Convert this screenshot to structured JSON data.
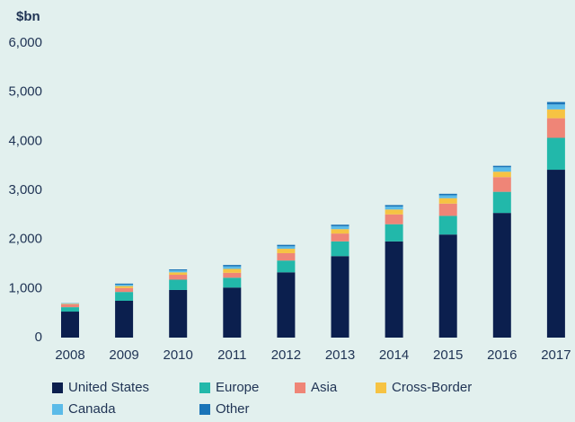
{
  "chart_data": {
    "type": "stacked_bar",
    "y_label": "$bn",
    "categories": [
      "2008",
      "2009",
      "2010",
      "2011",
      "2012",
      "2013",
      "2014",
      "2015",
      "2016",
      "2017"
    ],
    "series": [
      {
        "name": "United States",
        "color": "#0b1f4e",
        "values": [
          530,
          750,
          970,
          1020,
          1330,
          1660,
          1960,
          2100,
          2540,
          3420
        ]
      },
      {
        "name": "Europe",
        "color": "#22b8aa",
        "values": [
          90,
          180,
          210,
          200,
          240,
          300,
          350,
          380,
          430,
          650
        ]
      },
      {
        "name": "Asia",
        "color": "#ef8577",
        "values": [
          60,
          80,
          100,
          100,
          150,
          160,
          200,
          250,
          300,
          400
        ]
      },
      {
        "name": "Cross-Border",
        "color": "#f6c343",
        "values": [
          10,
          40,
          50,
          80,
          90,
          90,
          100,
          110,
          110,
          180
        ]
      },
      {
        "name": "Canada",
        "color": "#5bbbe8",
        "values": [
          5,
          30,
          40,
          50,
          50,
          60,
          60,
          60,
          90,
          100
        ]
      },
      {
        "name": "Other",
        "color": "#1a74b8",
        "values": [
          5,
          20,
          20,
          30,
          30,
          30,
          30,
          30,
          30,
          50
        ]
      }
    ],
    "ylim": [
      0,
      6000
    ],
    "yticks": [
      0,
      {
        "value": 1000,
        "label": "1,000"
      },
      {
        "value": 2000,
        "label": "2,000"
      },
      {
        "value": 3000,
        "label": "3,000"
      },
      {
        "value": 4000,
        "label": "4,000"
      },
      {
        "value": 5000,
        "label": "5,000"
      },
      {
        "value": 6000,
        "label": "6,000"
      }
    ],
    "grid": false,
    "legend": "bottom"
  }
}
